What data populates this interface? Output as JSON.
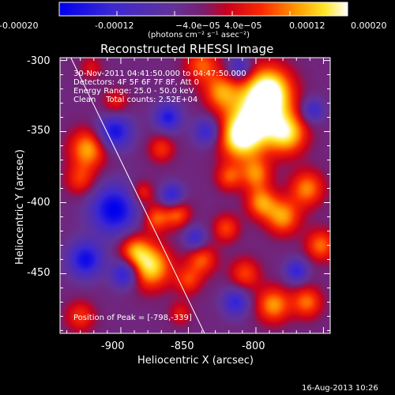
{
  "chart_data": {
    "type": "heatmap",
    "title": "Reconstructed RHESSI Image",
    "xlabel": "Heliocentric X (arcsec)",
    "ylabel": "Heliocentric Y (arcsec)",
    "xlim": [
      -945,
      -745
    ],
    "ylim": [
      -492,
      -298
    ],
    "x_ticks": [
      -900,
      -850,
      -800
    ],
    "y_ticks": [
      -300,
      -350,
      -400,
      -450
    ],
    "colorbar": {
      "label": "(photons cm⁻² s⁻¹ asec⁻²)",
      "range": [
        -0.0002,
        0.0002
      ],
      "ticks": [
        "-0.00020",
        "-0.00012",
        "−4.0e−05",
        "4.0e−05",
        "0.00012",
        "0.00020"
      ]
    },
    "annotations": {
      "time_range": "30-Nov-2011 04:41:50.000 to 04:47:50.000",
      "detectors": "Detectors: 4F 5F 6F 7F 8F, Att 0",
      "energy_range": "Energy Range: 25.0 - 50.0 keV",
      "clean_counts": "Clean    Total counts: 2.52E+04",
      "peak_position": "Position of Peak = [-798,-339]"
    },
    "limb_line": [
      [
        -937,
        -298
      ],
      [
        -838,
        -492
      ]
    ],
    "blobs": [
      {
        "x": -798,
        "y": -339,
        "r": 16,
        "v": 1.0
      },
      {
        "x": -790,
        "y": -320,
        "r": 12,
        "v": 0.85
      },
      {
        "x": -812,
        "y": -355,
        "r": 11,
        "v": 0.8
      },
      {
        "x": -776,
        "y": -352,
        "r": 10,
        "v": 0.7
      },
      {
        "x": -840,
        "y": -303,
        "r": 9,
        "v": 0.55
      },
      {
        "x": -826,
        "y": -322,
        "r": 9,
        "v": 0.6
      },
      {
        "x": -924,
        "y": -362,
        "r": 10,
        "v": 0.75
      },
      {
        "x": -930,
        "y": -384,
        "r": 8,
        "v": 0.45
      },
      {
        "x": -878,
        "y": -445,
        "r": 11,
        "v": 0.9
      },
      {
        "x": -890,
        "y": -433,
        "r": 8,
        "v": 0.55
      },
      {
        "x": -874,
        "y": -411,
        "r": 7,
        "v": 0.55
      },
      {
        "x": -858,
        "y": -408,
        "r": 7,
        "v": 0.55
      },
      {
        "x": -884,
        "y": -393,
        "r": 6,
        "v": 0.45
      },
      {
        "x": -840,
        "y": -440,
        "r": 8,
        "v": 0.55
      },
      {
        "x": -850,
        "y": -455,
        "r": 7,
        "v": 0.45
      },
      {
        "x": -822,
        "y": -418,
        "r": 7,
        "v": 0.5
      },
      {
        "x": -808,
        "y": -450,
        "r": 8,
        "v": 0.5
      },
      {
        "x": -787,
        "y": -472,
        "r": 9,
        "v": 0.7
      },
      {
        "x": -762,
        "y": -470,
        "r": 8,
        "v": 0.6
      },
      {
        "x": -796,
        "y": -400,
        "r": 8,
        "v": 0.65
      },
      {
        "x": -780,
        "y": -410,
        "r": 9,
        "v": 0.7
      },
      {
        "x": -800,
        "y": -380,
        "r": 8,
        "v": 0.6
      },
      {
        "x": -762,
        "y": -390,
        "r": 9,
        "v": 0.65
      },
      {
        "x": -752,
        "y": -430,
        "r": 8,
        "v": 0.6
      },
      {
        "x": -820,
        "y": -382,
        "r": 7,
        "v": 0.5
      },
      {
        "x": -870,
        "y": -362,
        "r": 7,
        "v": 0.45
      },
      {
        "x": -904,
        "y": -330,
        "r": 7,
        "v": 0.4
      },
      {
        "x": -930,
        "y": -480,
        "r": 8,
        "v": 0.45
      },
      {
        "x": -922,
        "y": -305,
        "r": 6,
        "v": 0.3
      },
      {
        "x": -856,
        "y": -478,
        "r": 6,
        "v": 0.35
      },
      {
        "x": -905,
        "y": -350,
        "r": 9,
        "v": -0.8
      },
      {
        "x": -905,
        "y": -405,
        "r": 12,
        "v": -0.9
      },
      {
        "x": -926,
        "y": -440,
        "r": 9,
        "v": -0.8
      },
      {
        "x": -897,
        "y": -450,
        "r": 7,
        "v": -0.75
      },
      {
        "x": -865,
        "y": -340,
        "r": 7,
        "v": -0.7
      },
      {
        "x": -836,
        "y": -350,
        "r": 7,
        "v": -0.6
      },
      {
        "x": -862,
        "y": -395,
        "r": 6,
        "v": -0.65
      },
      {
        "x": -815,
        "y": -470,
        "r": 7,
        "v": -0.6
      },
      {
        "x": -770,
        "y": -448,
        "r": 6,
        "v": -0.6
      },
      {
        "x": -812,
        "y": -305,
        "r": 6,
        "v": -0.55
      },
      {
        "x": -845,
        "y": -425,
        "r": 6,
        "v": -0.55
      },
      {
        "x": -758,
        "y": -335,
        "r": 6,
        "v": -0.55
      }
    ]
  },
  "footer_date": "16-Aug-2013 10:26"
}
